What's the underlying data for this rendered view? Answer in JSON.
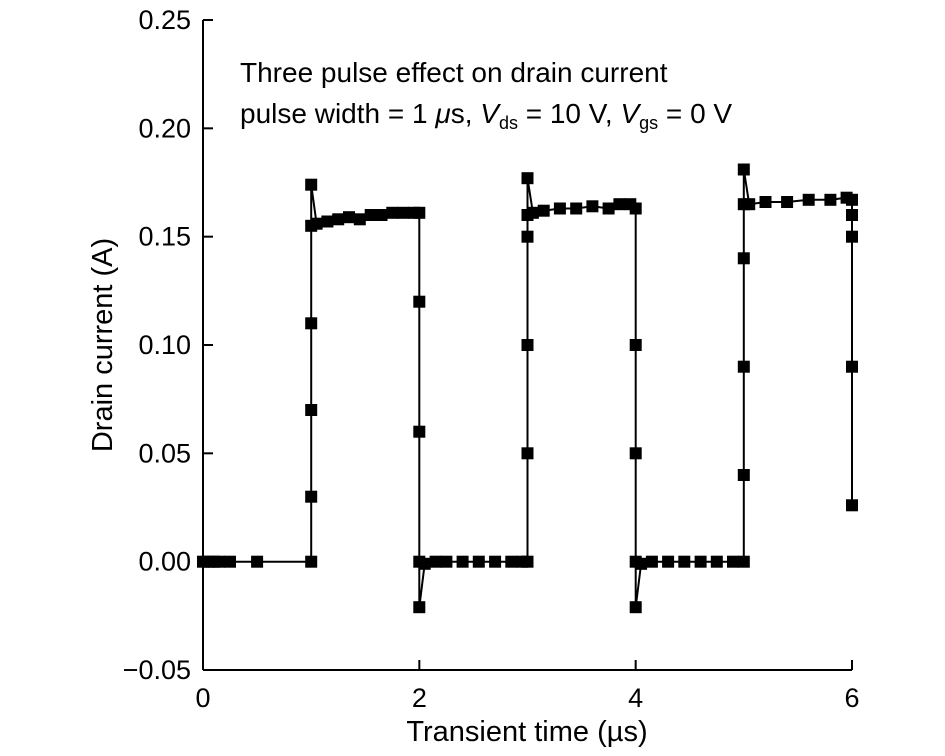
{
  "chart_data": {
    "type": "scatter",
    "title": "",
    "xlabel": "Transient time (µs)",
    "ylabel": "Drain current (A)",
    "xlim": [
      0,
      6
    ],
    "ylim": [
      -0.05,
      0.25
    ],
    "x_ticks": [
      "0",
      "2",
      "4",
      "6"
    ],
    "y_ticks": [
      "−0.05",
      "0.00",
      "0.05",
      "0.10",
      "0.15",
      "0.20",
      "0.25"
    ],
    "annotation": {
      "line1": "Three pulse effect on drain current",
      "line2_prefix": "pulse width = 1 ",
      "mu": "μ",
      "line2_unit": "s, ",
      "vds_symbol": "V",
      "vds_sub": "ds",
      "vds_value": " = 10 V, ",
      "vgs_symbol": "V",
      "vgs_sub": "gs",
      "vgs_value": " = 0 V"
    },
    "series": [
      {
        "name": "Drain current",
        "marker": "square",
        "color": "#000000",
        "x": [
          0.0,
          0.05,
          0.1,
          0.15,
          0.25,
          0.5,
          1.0,
          1.0,
          1.0,
          1.0,
          1.0,
          1.0,
          1.05,
          1.15,
          1.25,
          1.35,
          1.45,
          1.55,
          1.65,
          1.75,
          1.85,
          1.95,
          2.0,
          2.0,
          2.0,
          2.0,
          2.0,
          2.05,
          2.15,
          2.25,
          2.4,
          2.55,
          2.7,
          2.85,
          2.95,
          3.0,
          3.0,
          3.0,
          3.0,
          3.0,
          3.0,
          3.05,
          3.15,
          3.3,
          3.45,
          3.6,
          3.75,
          3.85,
          3.95,
          4.0,
          4.0,
          4.0,
          4.0,
          4.0,
          4.05,
          4.15,
          4.3,
          4.45,
          4.6,
          4.75,
          4.9,
          5.0,
          5.0,
          5.0,
          5.0,
          5.0,
          5.0,
          5.05,
          5.2,
          5.4,
          5.6,
          5.8,
          5.95,
          6.0,
          6.0,
          6.0,
          6.0,
          6.0
        ],
        "y": [
          0.0,
          0.0,
          0.0,
          0.0,
          0.0,
          0.0,
          0.0,
          0.03,
          0.07,
          0.11,
          0.155,
          0.174,
          0.156,
          0.157,
          0.158,
          0.159,
          0.158,
          0.16,
          0.16,
          0.161,
          0.161,
          0.161,
          0.161,
          0.12,
          0.06,
          0.0,
          -0.021,
          -0.001,
          0.0,
          0.0,
          0.0,
          0.0,
          0.0,
          0.0,
          0.0,
          0.0,
          0.05,
          0.1,
          0.15,
          0.16,
          0.177,
          0.161,
          0.162,
          0.163,
          0.163,
          0.164,
          0.163,
          0.165,
          0.165,
          0.163,
          0.1,
          0.05,
          0.0,
          -0.021,
          -0.001,
          0.0,
          0.0,
          0.0,
          0.0,
          0.0,
          0.0,
          0.0,
          0.04,
          0.09,
          0.14,
          0.165,
          0.181,
          0.165,
          0.166,
          0.166,
          0.167,
          0.167,
          0.168,
          0.167,
          0.16,
          0.15,
          0.09,
          0.026
        ]
      }
    ]
  }
}
